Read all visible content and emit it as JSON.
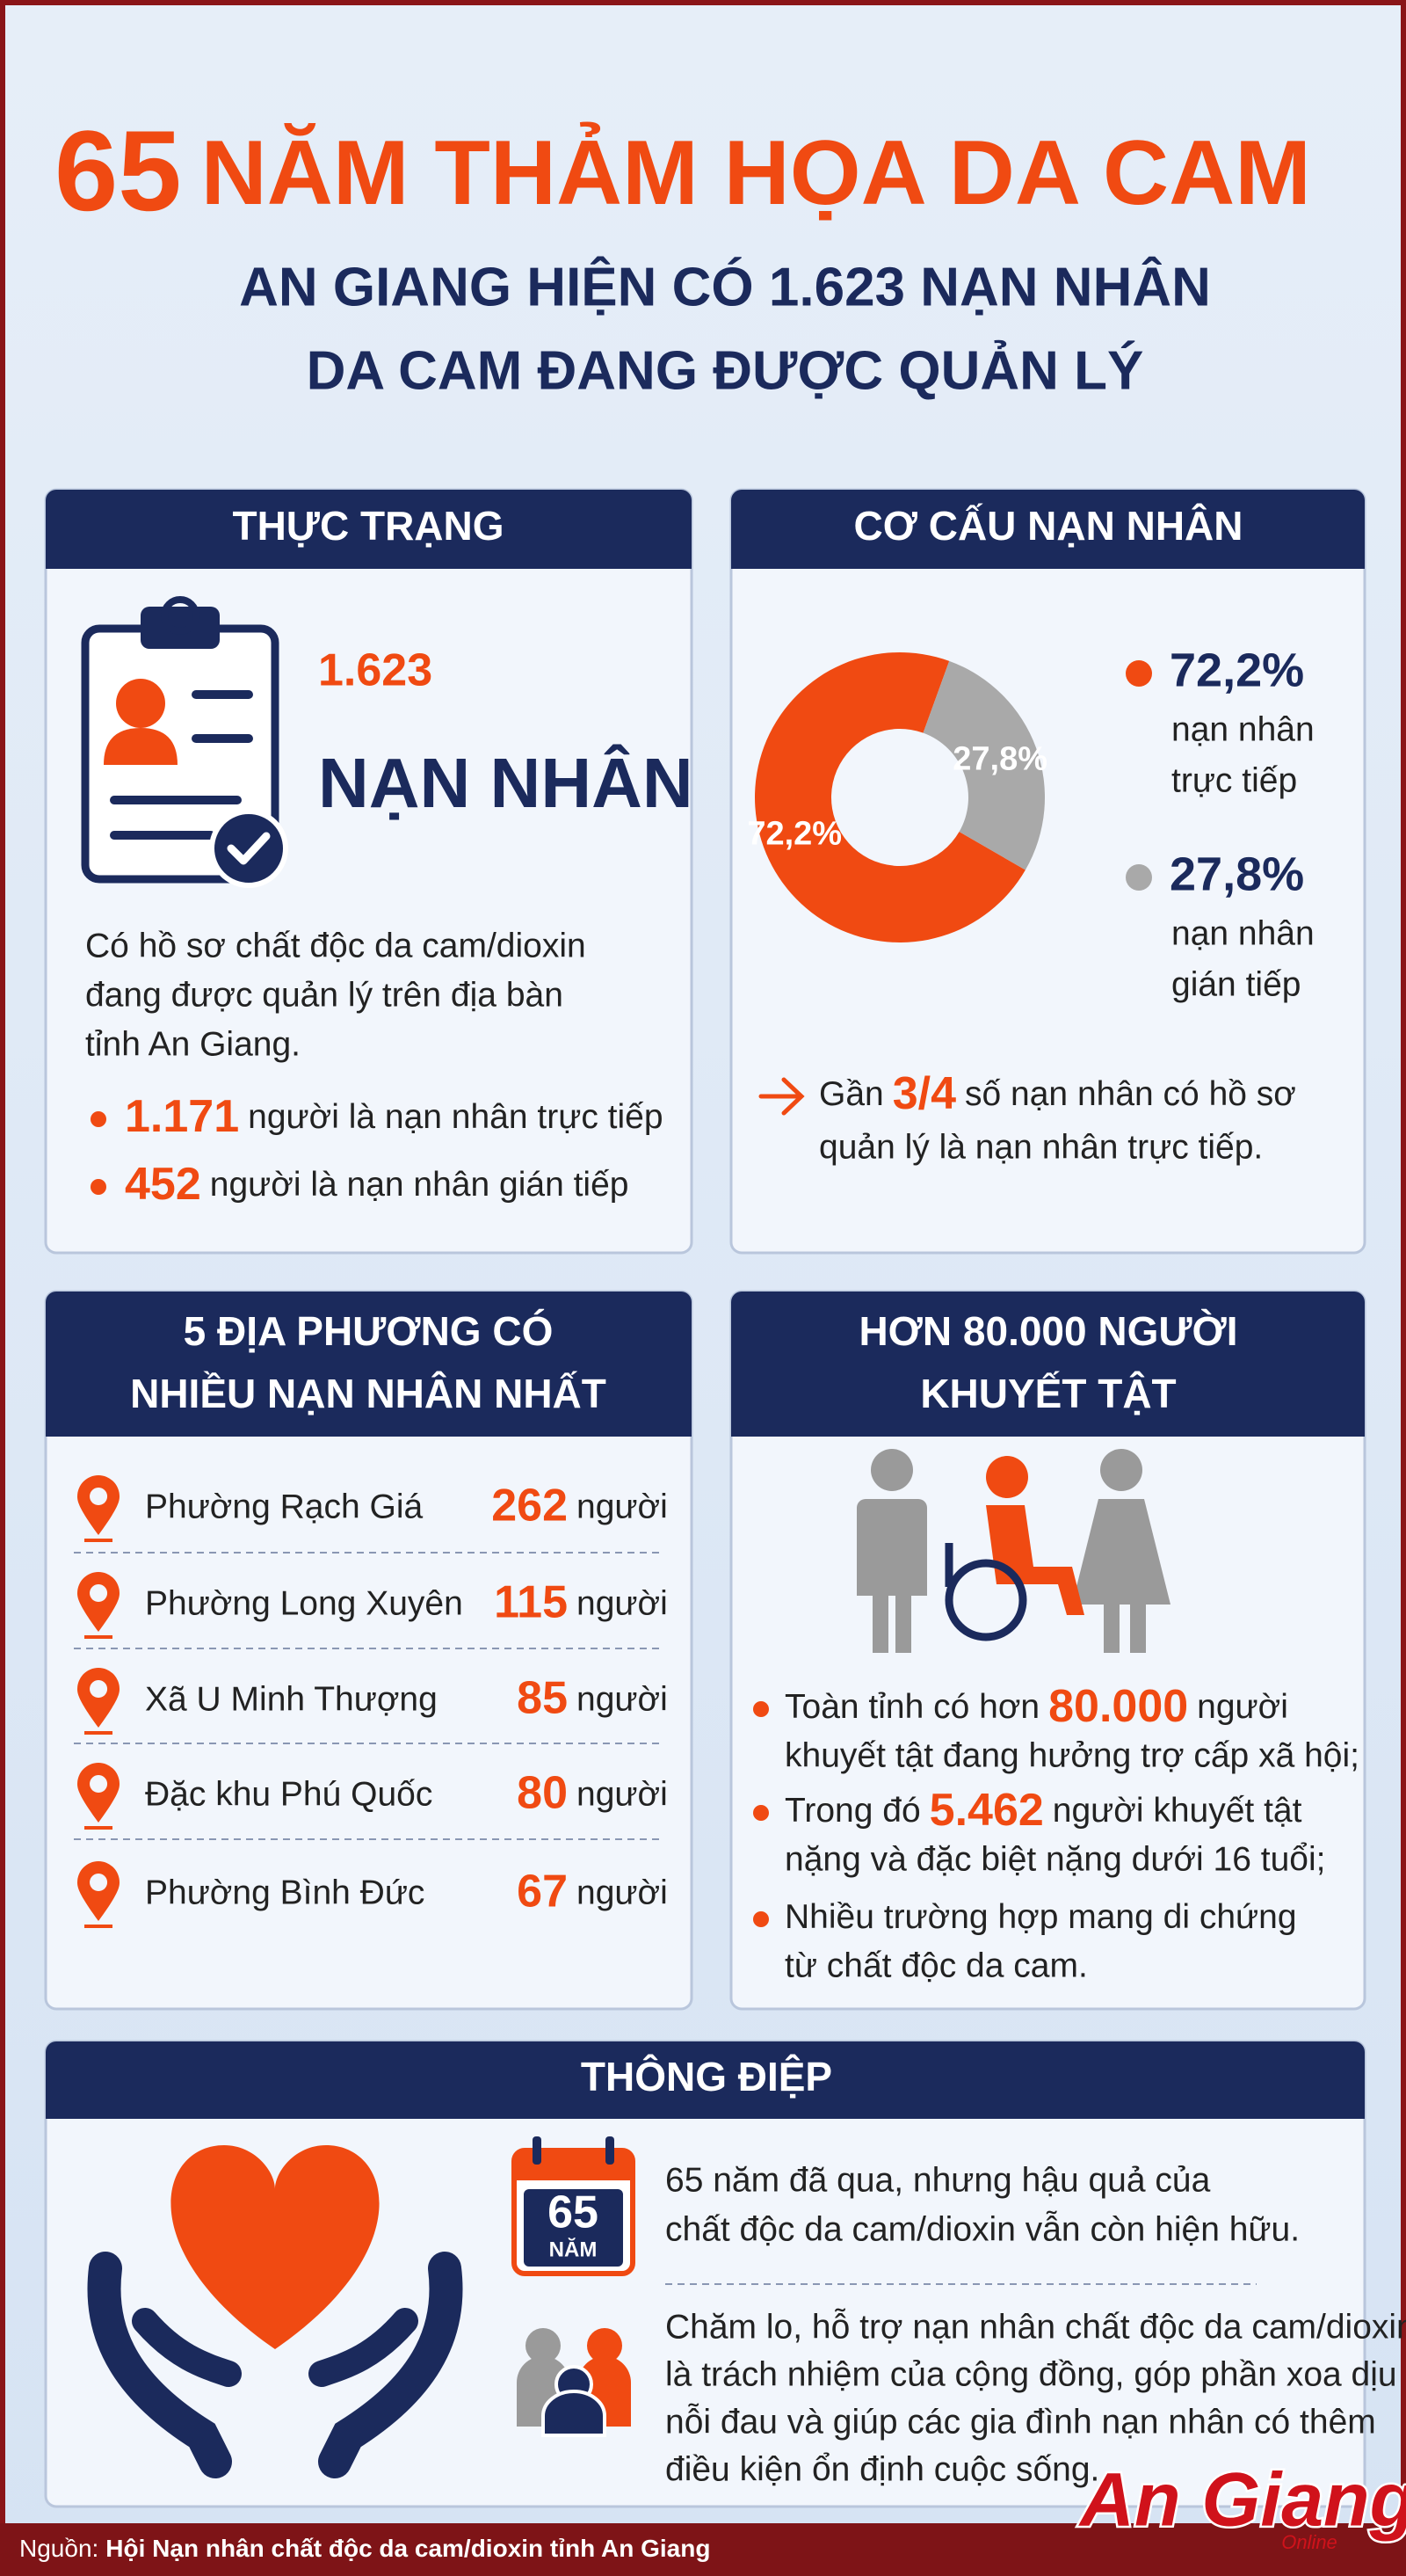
{
  "header": {
    "title_number": "65",
    "title": "NĂM THẢM HỌA DA CAM",
    "subtitle": [
      "AN GIANG HIỆN CÓ 1.623 NẠN NHÂN",
      "DA CAM ĐANG ĐƯỢC QUẢN LÝ"
    ]
  },
  "status": {
    "heading": "THỰC TRẠNG",
    "number": "1.623",
    "unit": "NẠN NHÂN",
    "description": [
      "Có hồ sơ chất độc da cam/dioxin",
      "đang được quản lý trên địa bàn",
      "tỉnh An Giang."
    ],
    "items": [
      {
        "number": "1.171",
        "text": "người là nạn nhân trực tiếp"
      },
      {
        "number": "452",
        "text": "người là nạn nhân gián tiếp"
      }
    ]
  },
  "structure": {
    "heading": "CƠ CẤU NẠN NHÂN",
    "slices": [
      {
        "value": 72.2,
        "label": "72,2%",
        "name": [
          "nạn nhân",
          "trực tiếp"
        ],
        "color": "#f04a12"
      },
      {
        "value": 27.8,
        "label": "27,8%",
        "name": [
          "nạn nhân",
          "gián tiếp"
        ],
        "color": "#a9a9a9"
      }
    ],
    "note": {
      "prefix": "Gần",
      "highlight": "3/4",
      "rest": "số nạn nhân có hồ sơ",
      "line2": "quản lý là nạn nhân trực tiếp."
    }
  },
  "localities": {
    "heading": [
      "5 ĐỊA PHƯƠNG CÓ",
      "NHIỀU NẠN NHÂN NHẤT"
    ],
    "unit": "người",
    "rows": [
      {
        "name": "Phường Rạch Giá",
        "count": "262"
      },
      {
        "name": "Phường Long Xuyên",
        "count": "115"
      },
      {
        "name": "Xã U Minh Thượng",
        "count": "85"
      },
      {
        "name": "Đặc khu Phú Quốc",
        "count": "80"
      },
      {
        "name": "Phường Bình Đức",
        "count": "67"
      }
    ]
  },
  "disability": {
    "heading": [
      "HƠN 80.000 NGƯỜI",
      "KHUYẾT TẬT"
    ],
    "items": [
      {
        "before": "Toàn tỉnh có hơn",
        "highlight": "80.000",
        "after": "người",
        "line2": "khuyết tật đang hưởng trợ cấp xã hội;"
      },
      {
        "before": "Trong đó",
        "highlight": "5.462",
        "after": "người khuyết tật",
        "line2": "nặng và đặc biệt nặng dưới 16 tuổi;"
      },
      {
        "before": "Nhiều trường hợp mang di chứng",
        "line2": "từ chất độc da cam."
      }
    ]
  },
  "message": {
    "heading": "THÔNG ĐIỆP",
    "calendar": {
      "number": "65",
      "unit": "NĂM"
    },
    "paragraphs": [
      [
        "65 năm đã qua, nhưng hậu quả của",
        "chất độc da cam/dioxin vẫn còn hiện hữu."
      ],
      [
        "Chăm lo, hỗ trợ nạn nhân chất độc da cam/dioxin",
        "là trách nhiệm của cộng đồng, góp phần xoa dịu",
        "nỗi đau và giúp các gia đình nạn nhân có thêm",
        "điều kiện ổn định cuộc sống."
      ]
    ]
  },
  "footer": {
    "source_label": "Nguồn:",
    "source": "Hội Nạn nhân chất độc da cam/dioxin tỉnh An Giang",
    "logo": "An Giang",
    "logo_sub": "Online"
  }
}
